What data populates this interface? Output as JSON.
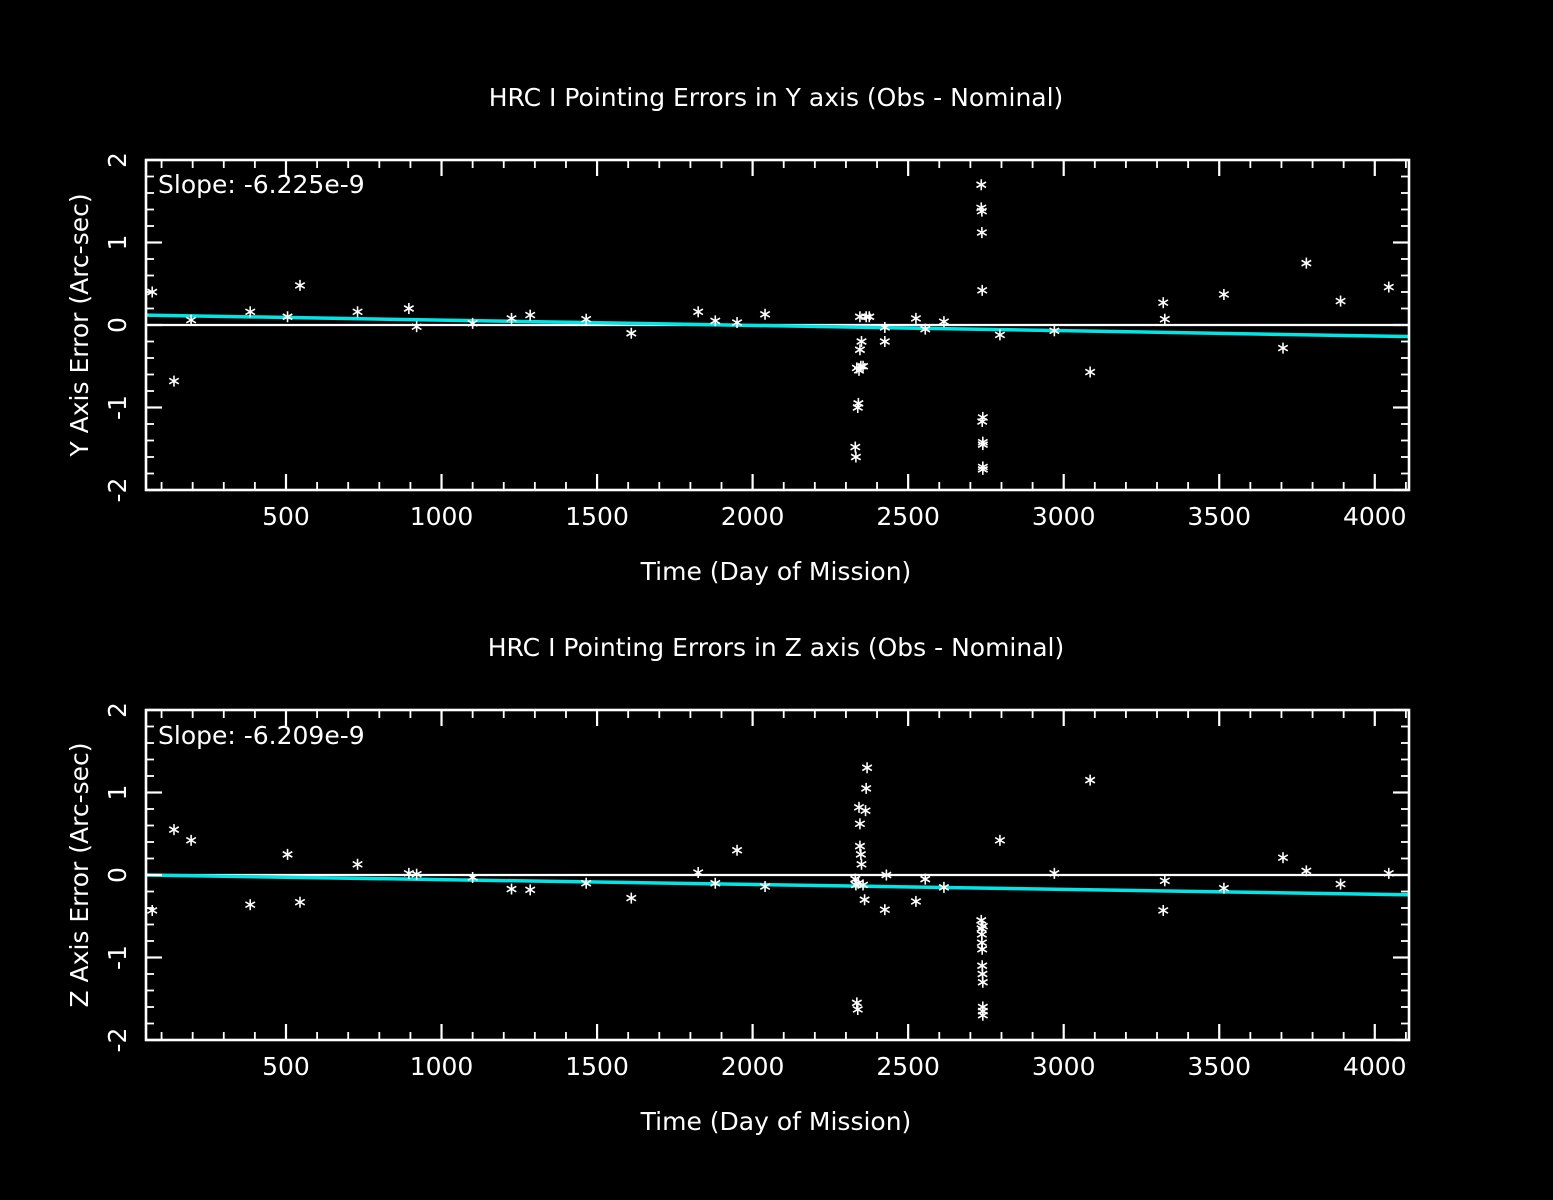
{
  "colors": {
    "background": "#000000",
    "axes": "#ffffff",
    "points": "#ffffff",
    "zero_line": "#ffffff",
    "fit_line": "#00e5e5"
  },
  "chart_data": [
    {
      "type": "scatter",
      "title": "HRC I Pointing Errors in Y axis (Obs - Nominal)",
      "xlabel": "Time (Day of Mission)",
      "ylabel": "Y Axis Error (Arc-sec)",
      "annotation": "Slope: -6.225e-9",
      "xlim": [
        50,
        4110
      ],
      "ylim": [
        -2,
        2
      ],
      "xticks": [
        500,
        1000,
        1500,
        2000,
        2500,
        3000,
        3500,
        4000
      ],
      "yticks": [
        -2,
        -1,
        0,
        1,
        2
      ],
      "xtick_labels": [
        "500",
        "1000",
        "1500",
        "2000",
        "2500",
        "3000",
        "3500",
        "4000"
      ],
      "ytick_labels": [
        "-2",
        "-1",
        "0",
        "1",
        "2"
      ],
      "marker": "*",
      "reference_line": 0,
      "fit_line": {
        "x": [
          50,
          4110
        ],
        "y": [
          0.12,
          -0.14
        ]
      },
      "points": {
        "x": [
          70,
          140,
          195,
          385,
          505,
          545,
          730,
          895,
          920,
          1100,
          1225,
          1285,
          1465,
          1610,
          1825,
          1880,
          1950,
          2040,
          2330,
          2332,
          2335,
          2338,
          2340,
          2342,
          2345,
          2345,
          2348,
          2350,
          2355,
          2365,
          2375,
          2425,
          2425,
          2525,
          2555,
          2615,
          2735,
          2735,
          2737,
          2737,
          2738,
          2738,
          2740,
          2740,
          2740,
          2740,
          2740,
          2795,
          2970,
          3085,
          3320,
          3325,
          3515,
          3705,
          3780,
          3890,
          4045
        ],
        "y": [
          0.4,
          -0.68,
          0.06,
          0.16,
          0.1,
          0.48,
          0.16,
          0.2,
          -0.02,
          0.02,
          0.08,
          0.12,
          0.07,
          -0.1,
          0.16,
          0.05,
          0.03,
          0.13,
          -1.48,
          -1.6,
          -0.52,
          -1.0,
          -0.95,
          -0.55,
          -0.3,
          0.1,
          -0.5,
          -0.2,
          -0.5,
          0.1,
          0.1,
          -0.03,
          -0.2,
          0.08,
          -0.05,
          0.04,
          1.7,
          1.42,
          1.38,
          1.12,
          0.42,
          -1.17,
          -1.42,
          -1.45,
          -1.72,
          -1.75,
          -1.12,
          -0.12,
          -0.07,
          -0.57,
          0.27,
          0.07,
          0.37,
          -0.28,
          0.75,
          0.29,
          0.46
        ]
      }
    },
    {
      "type": "scatter",
      "title": "HRC I Pointing Errors in  Z axis (Obs - Nominal)",
      "xlabel": "Time (Day of Mission)",
      "ylabel": "Z Axis Error (Arc-sec)",
      "annotation": "Slope: -6.209e-9",
      "xlim": [
        50,
        4110
      ],
      "ylim": [
        -2,
        2
      ],
      "xticks": [
        500,
        1000,
        1500,
        2000,
        2500,
        3000,
        3500,
        4000
      ],
      "yticks": [
        -2,
        -1,
        0,
        1,
        2
      ],
      "xtick_labels": [
        "500",
        "1000",
        "1500",
        "2000",
        "2500",
        "3000",
        "3500",
        "4000"
      ],
      "ytick_labels": [
        "-2",
        "-1",
        "0",
        "1",
        "2"
      ],
      "marker": "*",
      "reference_line": 0,
      "fit_line": {
        "x": [
          50,
          4110
        ],
        "y": [
          0.0,
          -0.24
        ]
      },
      "points": {
        "x": [
          70,
          140,
          195,
          385,
          505,
          545,
          730,
          895,
          920,
          1100,
          1225,
          1285,
          1465,
          1610,
          1825,
          1880,
          1950,
          2040,
          2330,
          2332,
          2335,
          2338,
          2340,
          2342,
          2345,
          2345,
          2348,
          2350,
          2355,
          2360,
          2363,
          2365,
          2368,
          2425,
          2430,
          2525,
          2555,
          2615,
          2735,
          2736,
          2737,
          2737,
          2738,
          2738,
          2739,
          2740,
          2740,
          2740,
          2740,
          2740,
          2795,
          2970,
          3085,
          3320,
          3325,
          3515,
          3705,
          3780,
          3890,
          4045
        ],
        "y": [
          -0.43,
          0.55,
          0.42,
          -0.36,
          0.25,
          -0.33,
          0.13,
          0.02,
          0.01,
          -0.03,
          -0.17,
          -0.18,
          -0.1,
          -0.28,
          0.03,
          -0.1,
          0.3,
          -0.14,
          -0.05,
          -0.12,
          -1.55,
          -1.63,
          -0.1,
          0.82,
          0.62,
          0.35,
          0.25,
          0.13,
          -0.12,
          -0.3,
          0.78,
          1.05,
          1.3,
          -0.42,
          0.0,
          -0.32,
          -0.05,
          -0.15,
          -0.55,
          -0.65,
          -0.72,
          -0.82,
          -0.9,
          -1.1,
          -1.2,
          -1.3,
          -1.6,
          -1.65,
          -1.7,
          -0.62,
          0.42,
          0.02,
          1.15,
          -0.43,
          -0.07,
          -0.16,
          0.21,
          0.05,
          -0.11,
          0.02
        ]
      }
    }
  ]
}
